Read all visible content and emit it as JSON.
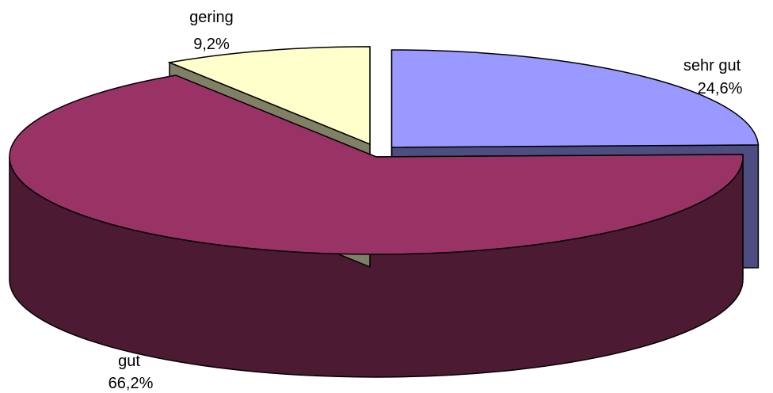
{
  "chart_data": {
    "type": "pie",
    "title": "",
    "slices": [
      {
        "label": "sehr gut",
        "value": 24.6,
        "value_label": "24,6%",
        "color": "#9999ff",
        "side_color": "#4d4d80",
        "exploded": true
      },
      {
        "label": "gut",
        "value": 66.2,
        "value_label": "66,2%",
        "color": "#993366",
        "side_color": "#4d1a33",
        "exploded": false
      },
      {
        "label": "gering",
        "value": 9.2,
        "value_label": "9,2%",
        "color": "#ffffcc",
        "side_color": "#808066",
        "exploded": true
      }
    ],
    "style": "3d-exploded",
    "legend": "none"
  }
}
